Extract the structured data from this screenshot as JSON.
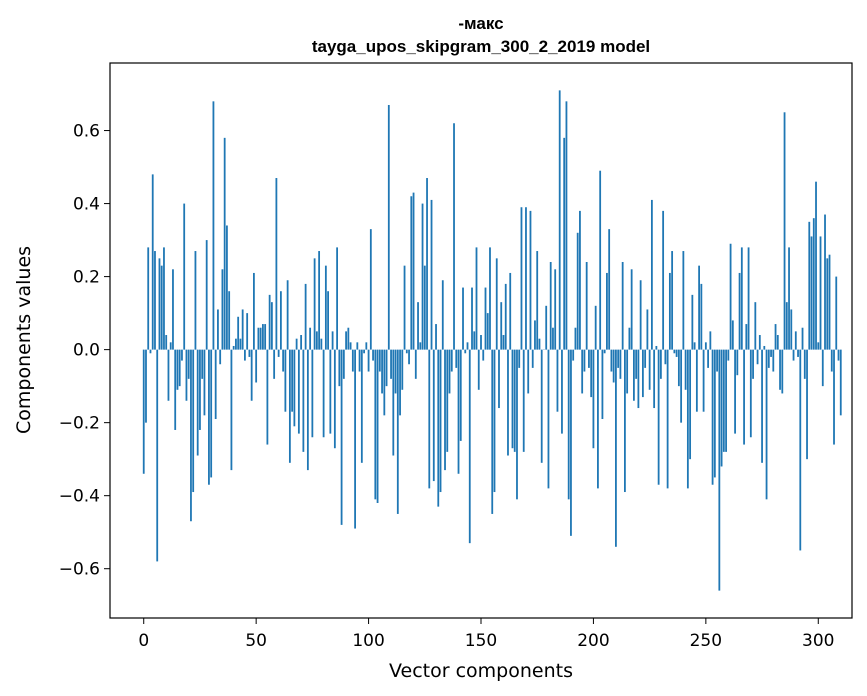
{
  "chart_data": {
    "type": "bar",
    "title_line1": "-макс",
    "title_line2": "tayga_upos_skipgram_300_2_2019 model",
    "xlabel": "Vector components",
    "ylabel": "Components values",
    "xlim": [
      -15,
      315
    ],
    "ylim": [
      -0.735,
      0.785
    ],
    "xticks": [
      0,
      50,
      100,
      150,
      200,
      250,
      300
    ],
    "xtick_labels": [
      "0",
      "50",
      "100",
      "150",
      "200",
      "250",
      "300"
    ],
    "yticks": [
      -0.6,
      -0.4,
      -0.2,
      0.0,
      0.2,
      0.4,
      0.6
    ],
    "ytick_labels": [
      "−0.6",
      "−0.4",
      "−0.2",
      "0.0",
      "0.2",
      "0.4",
      "0.6"
    ],
    "bar_color": "#1f77b4",
    "values": [
      -0.34,
      -0.2,
      0.28,
      -0.01,
      0.48,
      0.27,
      -0.58,
      0.25,
      0.23,
      0.28,
      0.04,
      -0.14,
      0.02,
      0.22,
      -0.22,
      -0.11,
      -0.1,
      -0.03,
      0.4,
      -0.14,
      -0.08,
      -0.47,
      -0.39,
      0.27,
      -0.29,
      -0.22,
      -0.08,
      -0.18,
      0.3,
      -0.37,
      -0.35,
      0.68,
      -0.19,
      0.11,
      -0.04,
      0.22,
      0.58,
      0.34,
      0.16,
      -0.33,
      0.01,
      0.03,
      0.09,
      0.03,
      0.11,
      -0.03,
      0.1,
      -0.02,
      -0.14,
      0.21,
      -0.09,
      0.06,
      0.06,
      0.07,
      0.07,
      -0.26,
      0.15,
      0.13,
      -0.08,
      0.47,
      -0.02,
      0.16,
      -0.06,
      -0.17,
      0.19,
      -0.31,
      -0.17,
      -0.21,
      0.03,
      -0.23,
      0.04,
      -0.28,
      0.18,
      -0.33,
      0.06,
      -0.24,
      0.25,
      0.05,
      0.27,
      0.03,
      -0.24,
      0.23,
      0.16,
      -0.23,
      0.05,
      -0.27,
      0.28,
      -0.1,
      -0.48,
      -0.08,
      0.05,
      0.06,
      0.02,
      -0.06,
      -0.49,
      0.02,
      -0.06,
      -0.31,
      -0.01,
      0.02,
      -0.06,
      0.33,
      -0.03,
      -0.41,
      -0.42,
      -0.06,
      -0.12,
      -0.18,
      -0.1,
      0.67,
      -0.08,
      -0.29,
      -0.12,
      -0.45,
      -0.18,
      -0.11,
      0.23,
      -0.01,
      -0.04,
      0.42,
      0.43,
      -0.08,
      0.13,
      0.02,
      0.4,
      0.23,
      0.47,
      -0.38,
      0.41,
      -0.36,
      0.07,
      -0.43,
      -0.39,
      0.19,
      -0.33,
      -0.28,
      -0.12,
      -0.06,
      0.62,
      -0.05,
      -0.34,
      -0.25,
      0.17,
      -0.01,
      0.02,
      -0.53,
      0.17,
      0.05,
      0.28,
      -0.11,
      0.04,
      -0.03,
      0.17,
      0.1,
      0.28,
      -0.45,
      -0.39,
      0.25,
      -0.16,
      0.13,
      0.04,
      0.18,
      -0.29,
      0.21,
      -0.27,
      -0.28,
      -0.41,
      -0.05,
      0.39,
      -0.28,
      0.39,
      -0.12,
      0.38,
      -0.05,
      0.08,
      0.27,
      0.03,
      -0.31,
      0.0,
      0.12,
      -0.38,
      0.24,
      0.06,
      0.22,
      -0.17,
      0.71,
      -0.23,
      0.58,
      0.68,
      -0.41,
      -0.51,
      -0.03,
      0.06,
      0.32,
      0.38,
      -0.12,
      -0.06,
      0.24,
      -0.05,
      -0.13,
      -0.27,
      0.12,
      -0.38,
      0.49,
      -0.19,
      -0.01,
      0.21,
      0.33,
      -0.06,
      -0.09,
      -0.54,
      -0.05,
      -0.08,
      0.24,
      -0.39,
      -0.12,
      0.06,
      0.22,
      -0.14,
      -0.08,
      -0.16,
      0.19,
      -0.13,
      -0.05,
      0.11,
      -0.11,
      0.41,
      -0.16,
      0.01,
      -0.37,
      -0.08,
      0.38,
      -0.04,
      -0.38,
      0.21,
      0.27,
      -0.01,
      -0.02,
      -0.1,
      -0.2,
      0.27,
      -0.11,
      -0.38,
      -0.3,
      0.15,
      0.02,
      -0.17,
      0.23,
      0.18,
      -0.17,
      0.02,
      -0.05,
      0.05,
      -0.37,
      -0.35,
      -0.06,
      -0.66,
      -0.32,
      -0.28,
      -0.28,
      -0.03,
      0.29,
      0.08,
      -0.23,
      -0.07,
      0.21,
      0.28,
      -0.26,
      0.07,
      0.28,
      -0.24,
      -0.08,
      0.13,
      -0.04,
      0.04,
      -0.31,
      0.01,
      -0.41,
      -0.05,
      -0.02,
      -0.06,
      0.07,
      0.04,
      -0.11,
      -0.12,
      0.65,
      0.13,
      0.28,
      0.11,
      -0.03,
      0.05,
      -0.02,
      -0.55,
      0.06,
      -0.08,
      -0.3,
      0.35,
      0.31,
      0.36,
      0.46,
      0.02,
      0.31,
      -0.1,
      0.37,
      0.25,
      0.26,
      -0.06,
      -0.26,
      0.2,
      -0.03,
      -0.18
    ]
  }
}
